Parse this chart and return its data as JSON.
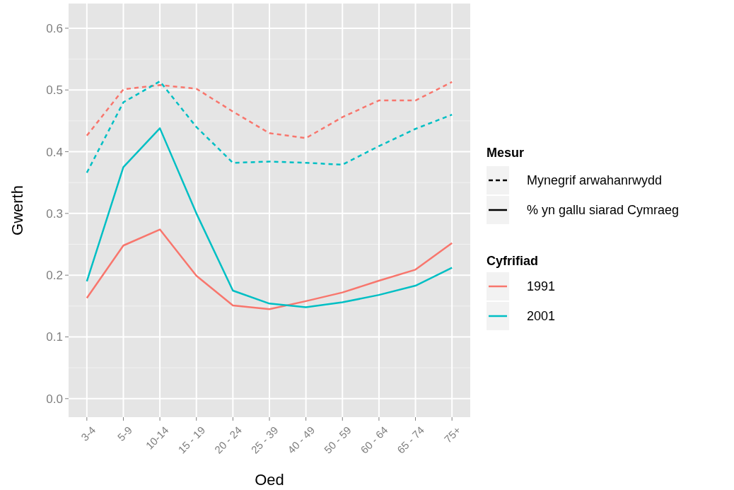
{
  "chart_data": {
    "type": "line",
    "xlabel": "Oed",
    "ylabel": "Gwerth",
    "legend_title": "Cyfrifiad",
    "legend": "right",
    "grid": true,
    "annotations": [
      "Mesur",
      "Mynegrif arwahanrwydd",
      "% yn gallu siarad Cymraeg"
    ],
    "categories": [
      "3-4",
      "5-9",
      "10-14",
      "15 - 19",
      "20 - 24",
      "25 - 39",
      "40 - 49",
      "50 - 59",
      "60 - 64",
      "65 - 74",
      "75+"
    ],
    "ylim": [
      -0.03,
      0.64
    ],
    "yticks": [
      {
        "value": 0,
        "label": "0.0"
      },
      {
        "value": 0.1,
        "label": "0.1"
      },
      {
        "value": 0.2,
        "label": "0.2"
      },
      {
        "value": 0.3,
        "label": "0.3"
      },
      {
        "value": 0.4,
        "label": "0.4"
      },
      {
        "value": 0.5,
        "label": "0.5"
      },
      {
        "value": 0.6,
        "label": "0.6"
      }
    ],
    "series": [
      {
        "color": "#f8766d",
        "line_style": "dashed",
        "values": [
          0.426,
          0.501,
          0.508,
          0.502,
          0.465,
          0.43,
          0.422,
          0.456,
          0.483,
          0.483,
          0.513
        ]
      },
      {
        "color": "#00bfc4",
        "line_style": "dashed",
        "values": [
          0.366,
          0.48,
          0.514,
          0.44,
          0.382,
          0.384,
          0.382,
          0.379,
          0.409,
          0.437,
          0.46
        ]
      },
      {
        "name": "1991",
        "color": "#f8766d",
        "line_style": "solid",
        "values": [
          0.163,
          0.248,
          0.274,
          0.199,
          0.151,
          0.145,
          0.158,
          0.172,
          0.191,
          0.209,
          0.252
        ]
      },
      {
        "name": "2001",
        "color": "#00bfc4",
        "line_style": "solid",
        "values": [
          0.19,
          0.375,
          0.438,
          0.3,
          0.175,
          0.154,
          0.148,
          0.156,
          0.168,
          0.183,
          0.212
        ]
      }
    ]
  }
}
